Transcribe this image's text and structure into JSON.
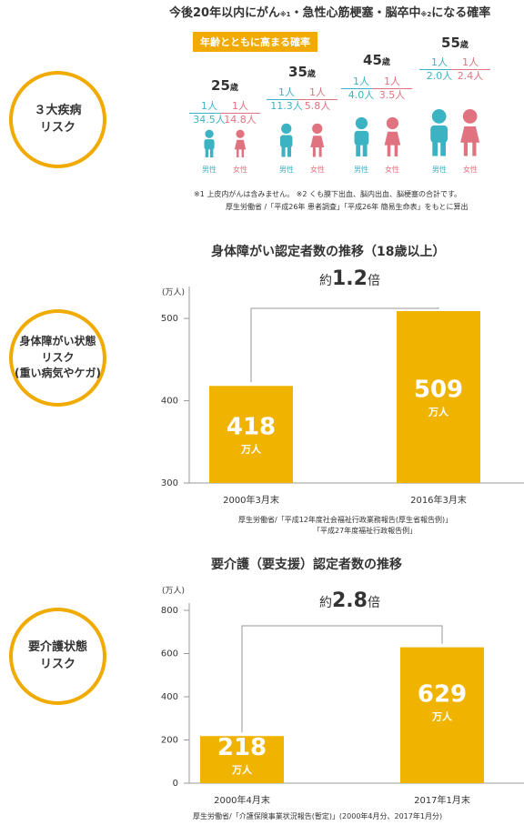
{
  "section1": {
    "circle": "３大疾病\nリスク",
    "title": "今後20年以内にがん",
    "title_note1": "※1",
    "title_mid": "・急性心筋梗塞・脳卒中",
    "title_note2": "※2",
    "title_end": "になる確率",
    "badge": "年齢とともに高まる確率",
    "groups": [
      {
        "age": "25",
        "age_unit": "歳",
        "male_one": "1人",
        "male_den": "34.5人",
        "female_one": "1人",
        "female_den": "14.8人"
      },
      {
        "age": "35",
        "age_unit": "歳",
        "male_one": "1人",
        "male_den": "11.3人",
        "female_one": "1人",
        "female_den": "5.8人"
      },
      {
        "age": "45",
        "age_unit": "歳",
        "male_one": "1人",
        "male_den": "4.0人",
        "female_one": "1人",
        "female_den": "3.5人"
      },
      {
        "age": "55",
        "age_unit": "歳",
        "male_one": "1人",
        "male_den": "2.0人",
        "female_one": "1人",
        "female_den": "2.4人"
      }
    ],
    "male_label": "男性",
    "female_label": "女性",
    "note1": "※1 上皮内がんは含みません。 ※2 くも膜下出血、脳内出血、脳梗塞の合計です。",
    "source": "厚生労働省 /「平成26年 患者調査」「平成26年 簡易生命表」をもとに算出",
    "colors": {
      "male": "#3bb3c3",
      "female": "#e0737f",
      "accent": "#f0aa00"
    }
  },
  "section2": {
    "circle": "身体障がい状態\nリスク\n(重い病気やケガ)",
    "title": "身体障がい認定者数の推移（18歳以上）",
    "ratio_prefix": "約",
    "ratio_value": "1.2",
    "ratio_suffix": "倍",
    "unit": "(万人)",
    "value_unit": "万人",
    "source1": "厚生労働省/「平成12年度社会福祉行政業務報告(厚生省報告例)」",
    "source2": "「平成27年度福祉行政報告例」"
  },
  "section3": {
    "circle": "要介護状態\nリスク",
    "title": "要介護（要支援）認定者数の推移",
    "ratio_prefix": "約",
    "ratio_value": "2.8",
    "ratio_suffix": "倍",
    "unit": "(万人)",
    "value_unit": "万人",
    "source": "厚生労働省/「介護保険事業状況報告(暫定)」(2000年4月分、2017年1月分)"
  },
  "chart_data": [
    {
      "type": "bar",
      "title": "身体障がい認定者数の推移（18歳以上）",
      "categories": [
        "2000年3月末",
        "2016年3月末"
      ],
      "values": [
        418,
        509
      ],
      "ylabel": "(万人)",
      "ylim": [
        300,
        530
      ],
      "yticks": [
        300,
        400,
        500
      ],
      "color": "#f0b400"
    },
    {
      "type": "bar",
      "title": "要介護（要支援）認定者数の推移",
      "categories": [
        "2000年4月末",
        "2017年1月末"
      ],
      "values": [
        218,
        629
      ],
      "ylabel": "(万人)",
      "ylim": [
        0,
        800
      ],
      "yticks": [
        0,
        200,
        400,
        600,
        800
      ],
      "color": "#f0b400"
    }
  ]
}
